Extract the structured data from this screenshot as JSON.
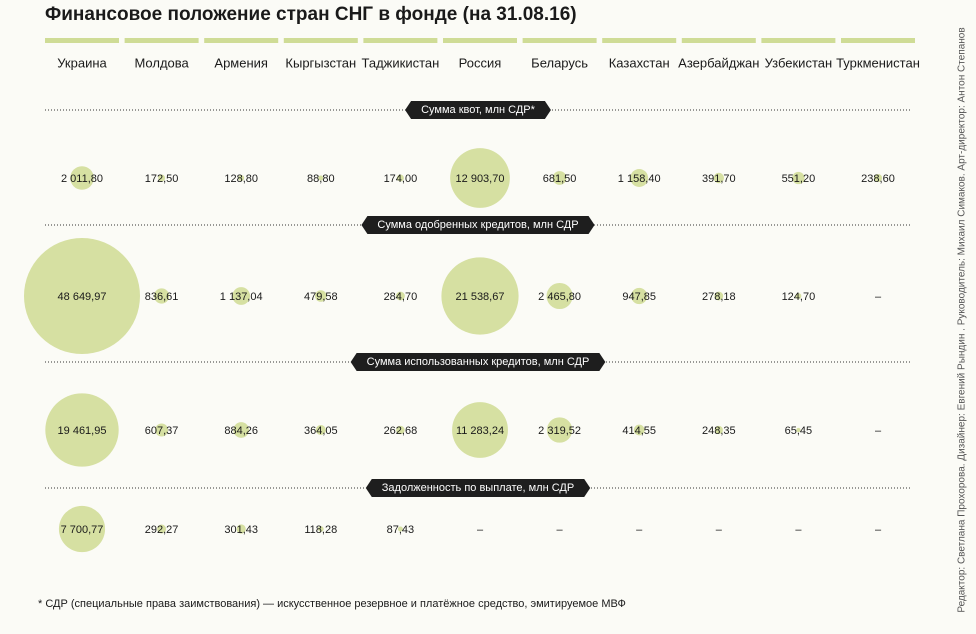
{
  "chart_data": {
    "type": "bubble-grid",
    "title": "Финансовое положение стран СНГ в фонде (на 31.08.16)",
    "categories": [
      "Украина",
      "Молдова",
      "Армения",
      "Кыргызстан",
      "Таджикистан",
      "Россия",
      "Беларусь",
      "Казахстан",
      "Азербайджан",
      "Узбекистан",
      "Туркменистан"
    ],
    "series": [
      {
        "name": "Сумма квот, млн СДР*",
        "color": "#d6e0a2",
        "values": [
          2011.8,
          172.5,
          128.8,
          88.8,
          174.0,
          12903.7,
          681.5,
          1158.4,
          391.7,
          551.2,
          238.6
        ],
        "value_labels": [
          "2 011,80",
          "172,50",
          "128,80",
          "88,80",
          "174,00",
          "12 903,70",
          "681,50",
          "1 158,40",
          "391,70",
          "551,20",
          "238,60"
        ]
      },
      {
        "name": "Сумма одобренных кредитов, млн СДР",
        "color": "#d6e0a2",
        "values": [
          48649.97,
          836.61,
          1137.04,
          479.58,
          284.7,
          21538.67,
          2465.8,
          947.85,
          278.18,
          124.7,
          null
        ],
        "value_labels": [
          "48 649,97",
          "836,61",
          "1 137,04",
          "479,58",
          "284,70",
          "21 538,67",
          "2 465,80",
          "947,85",
          "278,18",
          "124,70",
          "–"
        ]
      },
      {
        "name": "Сумма использованных кредитов, млн СДР",
        "color": "#d6e0a2",
        "values": [
          19461.95,
          607.37,
          884.26,
          364.05,
          262.68,
          11283.24,
          2319.52,
          414.55,
          248.35,
          65.45,
          null
        ],
        "value_labels": [
          "19 461,95",
          "607,37",
          "884,26",
          "364,05",
          "262,68",
          "11 283,24",
          "2 319,52",
          "414,55",
          "248,35",
          "65,45",
          "–"
        ]
      },
      {
        "name": "Задолженность по выплате, млн СДР",
        "color": "#d6e0a2",
        "values": [
          7700.77,
          292.27,
          301.43,
          118.28,
          87.43,
          null,
          null,
          null,
          null,
          null,
          null
        ],
        "value_labels": [
          "7 700,77",
          "292,27",
          "301,43",
          "118,28",
          "87,43",
          "–",
          "–",
          "–",
          "–",
          "–",
          "–"
        ]
      }
    ],
    "footnote": "* СДР (специальные права заимствования) — искусственное резервное и платёжное средство, эмитируемое МВФ",
    "credits": "Редактор: Светлана Прохорова. Дизайнер: Евгений Рындин . Руководитель: Михаил Симаков. Арт-директор: Антон Степанов"
  }
}
